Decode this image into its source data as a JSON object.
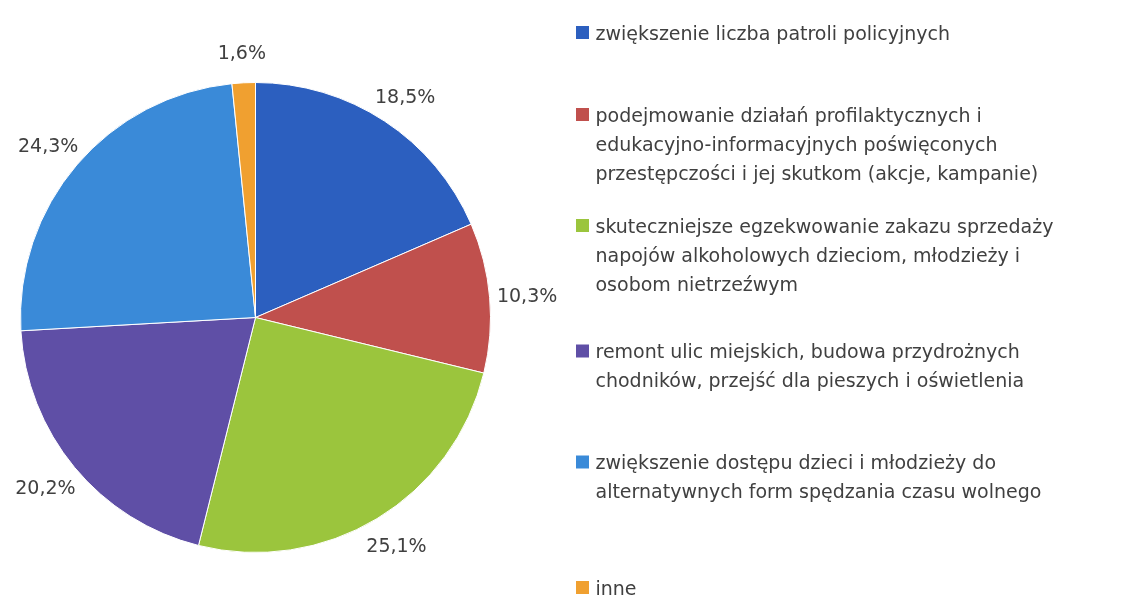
{
  "chart_data": {
    "type": "pie",
    "categories": [
      "zwiększenie liczba patroli policyjnych",
      "podejmowanie działań profilaktycznych i edukacyjno-informacyjnych poświęconych przestępczości i jej skutkom (akcje, kampanie)",
      "skuteczniejsze egzekwowanie zakazu sprzedaży napojów alkoholowych dzieciom, młodzieży i osobom nietrzeźwym",
      "remont ulic miejskich, budowa przydrożnych chodników, przejść dla pieszych i oświetlenia",
      "zwiększenie dostępu dzieci i młodzieży do alternatywnych form spędzania czasu wolnego",
      "inne"
    ],
    "values": [
      18.5,
      10.3,
      25.1,
      20.2,
      24.3,
      1.6
    ],
    "value_labels": [
      "18,5%",
      "10,3%",
      "25,1%",
      "20,2%",
      "24,3%",
      "1,6%"
    ],
    "colors": [
      "#2c5fbf",
      "#c0504d",
      "#9bc53d",
      "#5f4fa6",
      "#3a8ad8",
      "#f0a030"
    ],
    "legend": "right"
  }
}
